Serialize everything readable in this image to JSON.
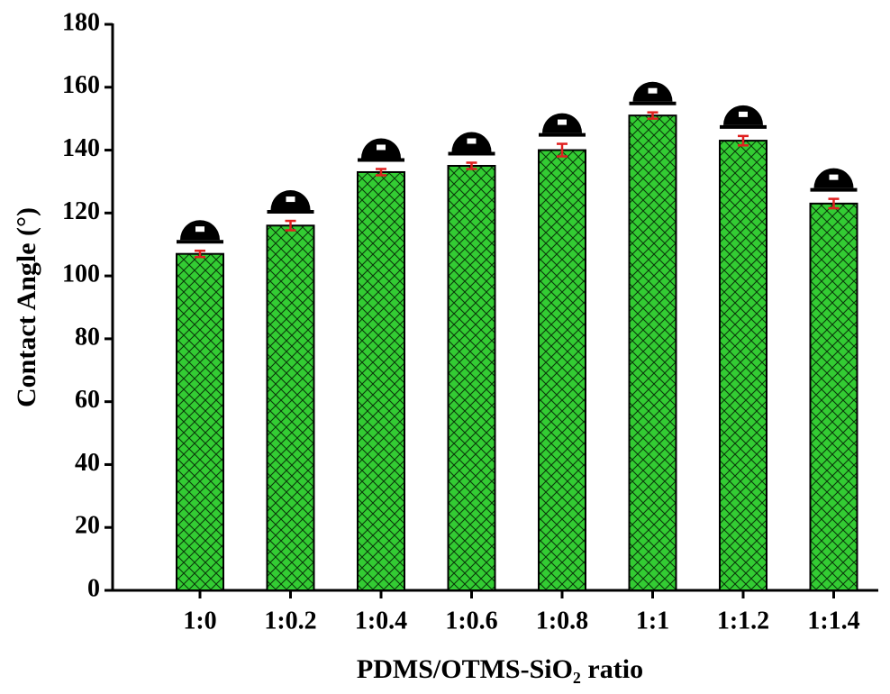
{
  "chart_data": {
    "type": "bar",
    "xlabel": "PDMS/OTMS-SiO₂ ratio",
    "ylabel": "Contact Angle (°)",
    "categories": [
      "1:0",
      "1:0.2",
      "1:0.4",
      "1:0.6",
      "1:0.8",
      "1:1",
      "1:1.2",
      "1:1.4"
    ],
    "values": [
      107,
      116,
      133,
      135,
      140,
      151,
      143,
      123
    ],
    "errors": [
      1,
      1.5,
      1,
      1,
      2,
      1,
      1.5,
      1.5
    ],
    "color": "#33cc33",
    "error_color": "#e02020",
    "ylim": [
      0,
      180
    ],
    "yticks": [
      0,
      20,
      40,
      60,
      80,
      100,
      120,
      140,
      160,
      180
    ],
    "grid": false
  }
}
